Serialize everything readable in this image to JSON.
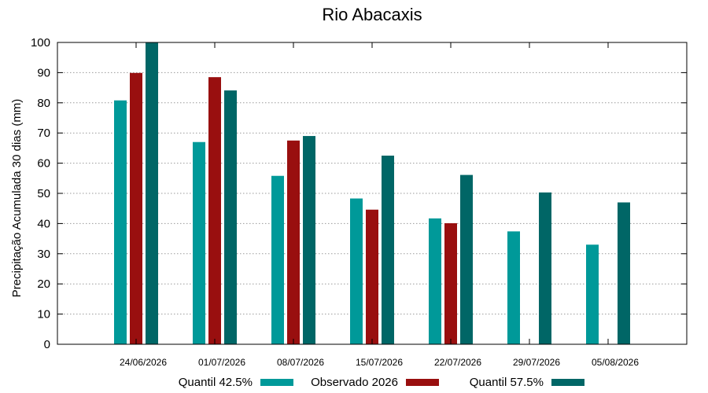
{
  "chart_data": {
    "type": "bar",
    "title": "Rio Abacaxis",
    "xlabel": "",
    "ylabel": "Precipitação Acumulada 30 dias (mm)",
    "ylim": [
      0,
      100
    ],
    "yticks": [
      0,
      10,
      20,
      30,
      40,
      50,
      60,
      70,
      80,
      90,
      100
    ],
    "grid": true,
    "legend_position": "bottom",
    "categories": [
      "24/06/2026",
      "01/07/2026",
      "08/07/2026",
      "15/07/2026",
      "22/07/2026",
      "29/07/2026",
      "05/08/2026"
    ],
    "series": [
      {
        "name": "Quantil 42.5%",
        "color": "#009999",
        "values": [
          80.8,
          67,
          55.8,
          48.3,
          41.7,
          37.4,
          33
        ]
      },
      {
        "name": "Observado 2026",
        "color": "#990f0f",
        "values": [
          89.9,
          88.5,
          67.5,
          44.6,
          40.1,
          null,
          null
        ]
      },
      {
        "name": "Quantil 57.5%",
        "color": "#006666",
        "values": [
          100,
          84.1,
          69,
          62.5,
          56.1,
          50.3,
          47
        ]
      }
    ]
  }
}
